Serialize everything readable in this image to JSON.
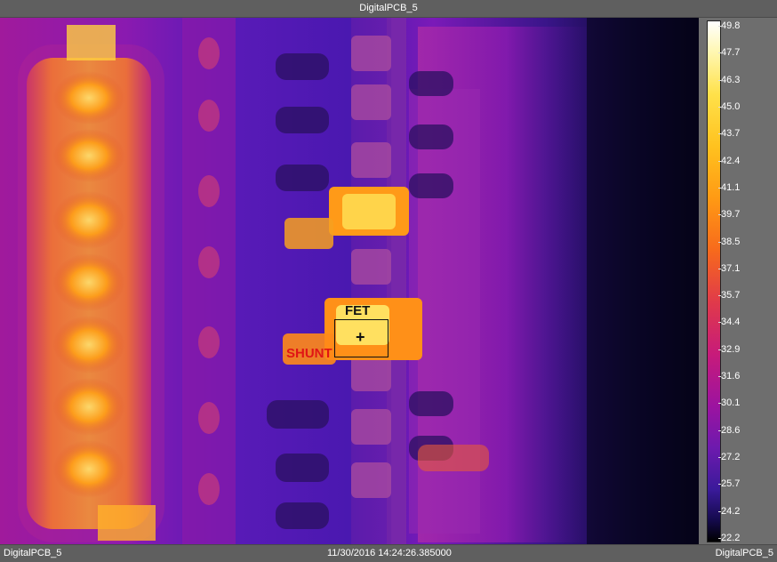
{
  "window": {
    "title": "DigitalPCB_5"
  },
  "thermal_image": {
    "roi_labels": {
      "fet": "FET",
      "shunt": "SHUNT"
    },
    "palette": "ironbow"
  },
  "colorbar": {
    "max": "49.8",
    "min": "22.2",
    "ticks": [
      "49.8",
      "47.7",
      "46.3",
      "45.0",
      "43.7",
      "42.4",
      "41.1",
      "39.7",
      "38.5",
      "37.1",
      "35.7",
      "34.4",
      "32.9",
      "31.6",
      "30.1",
      "28.6",
      "27.2",
      "25.7",
      "24.2",
      "22.2"
    ]
  },
  "status": {
    "left": "DigitalPCB_5",
    "timestamp": "11/30/2016 14:24:26.385000",
    "right": "DigitalPCB_5"
  }
}
